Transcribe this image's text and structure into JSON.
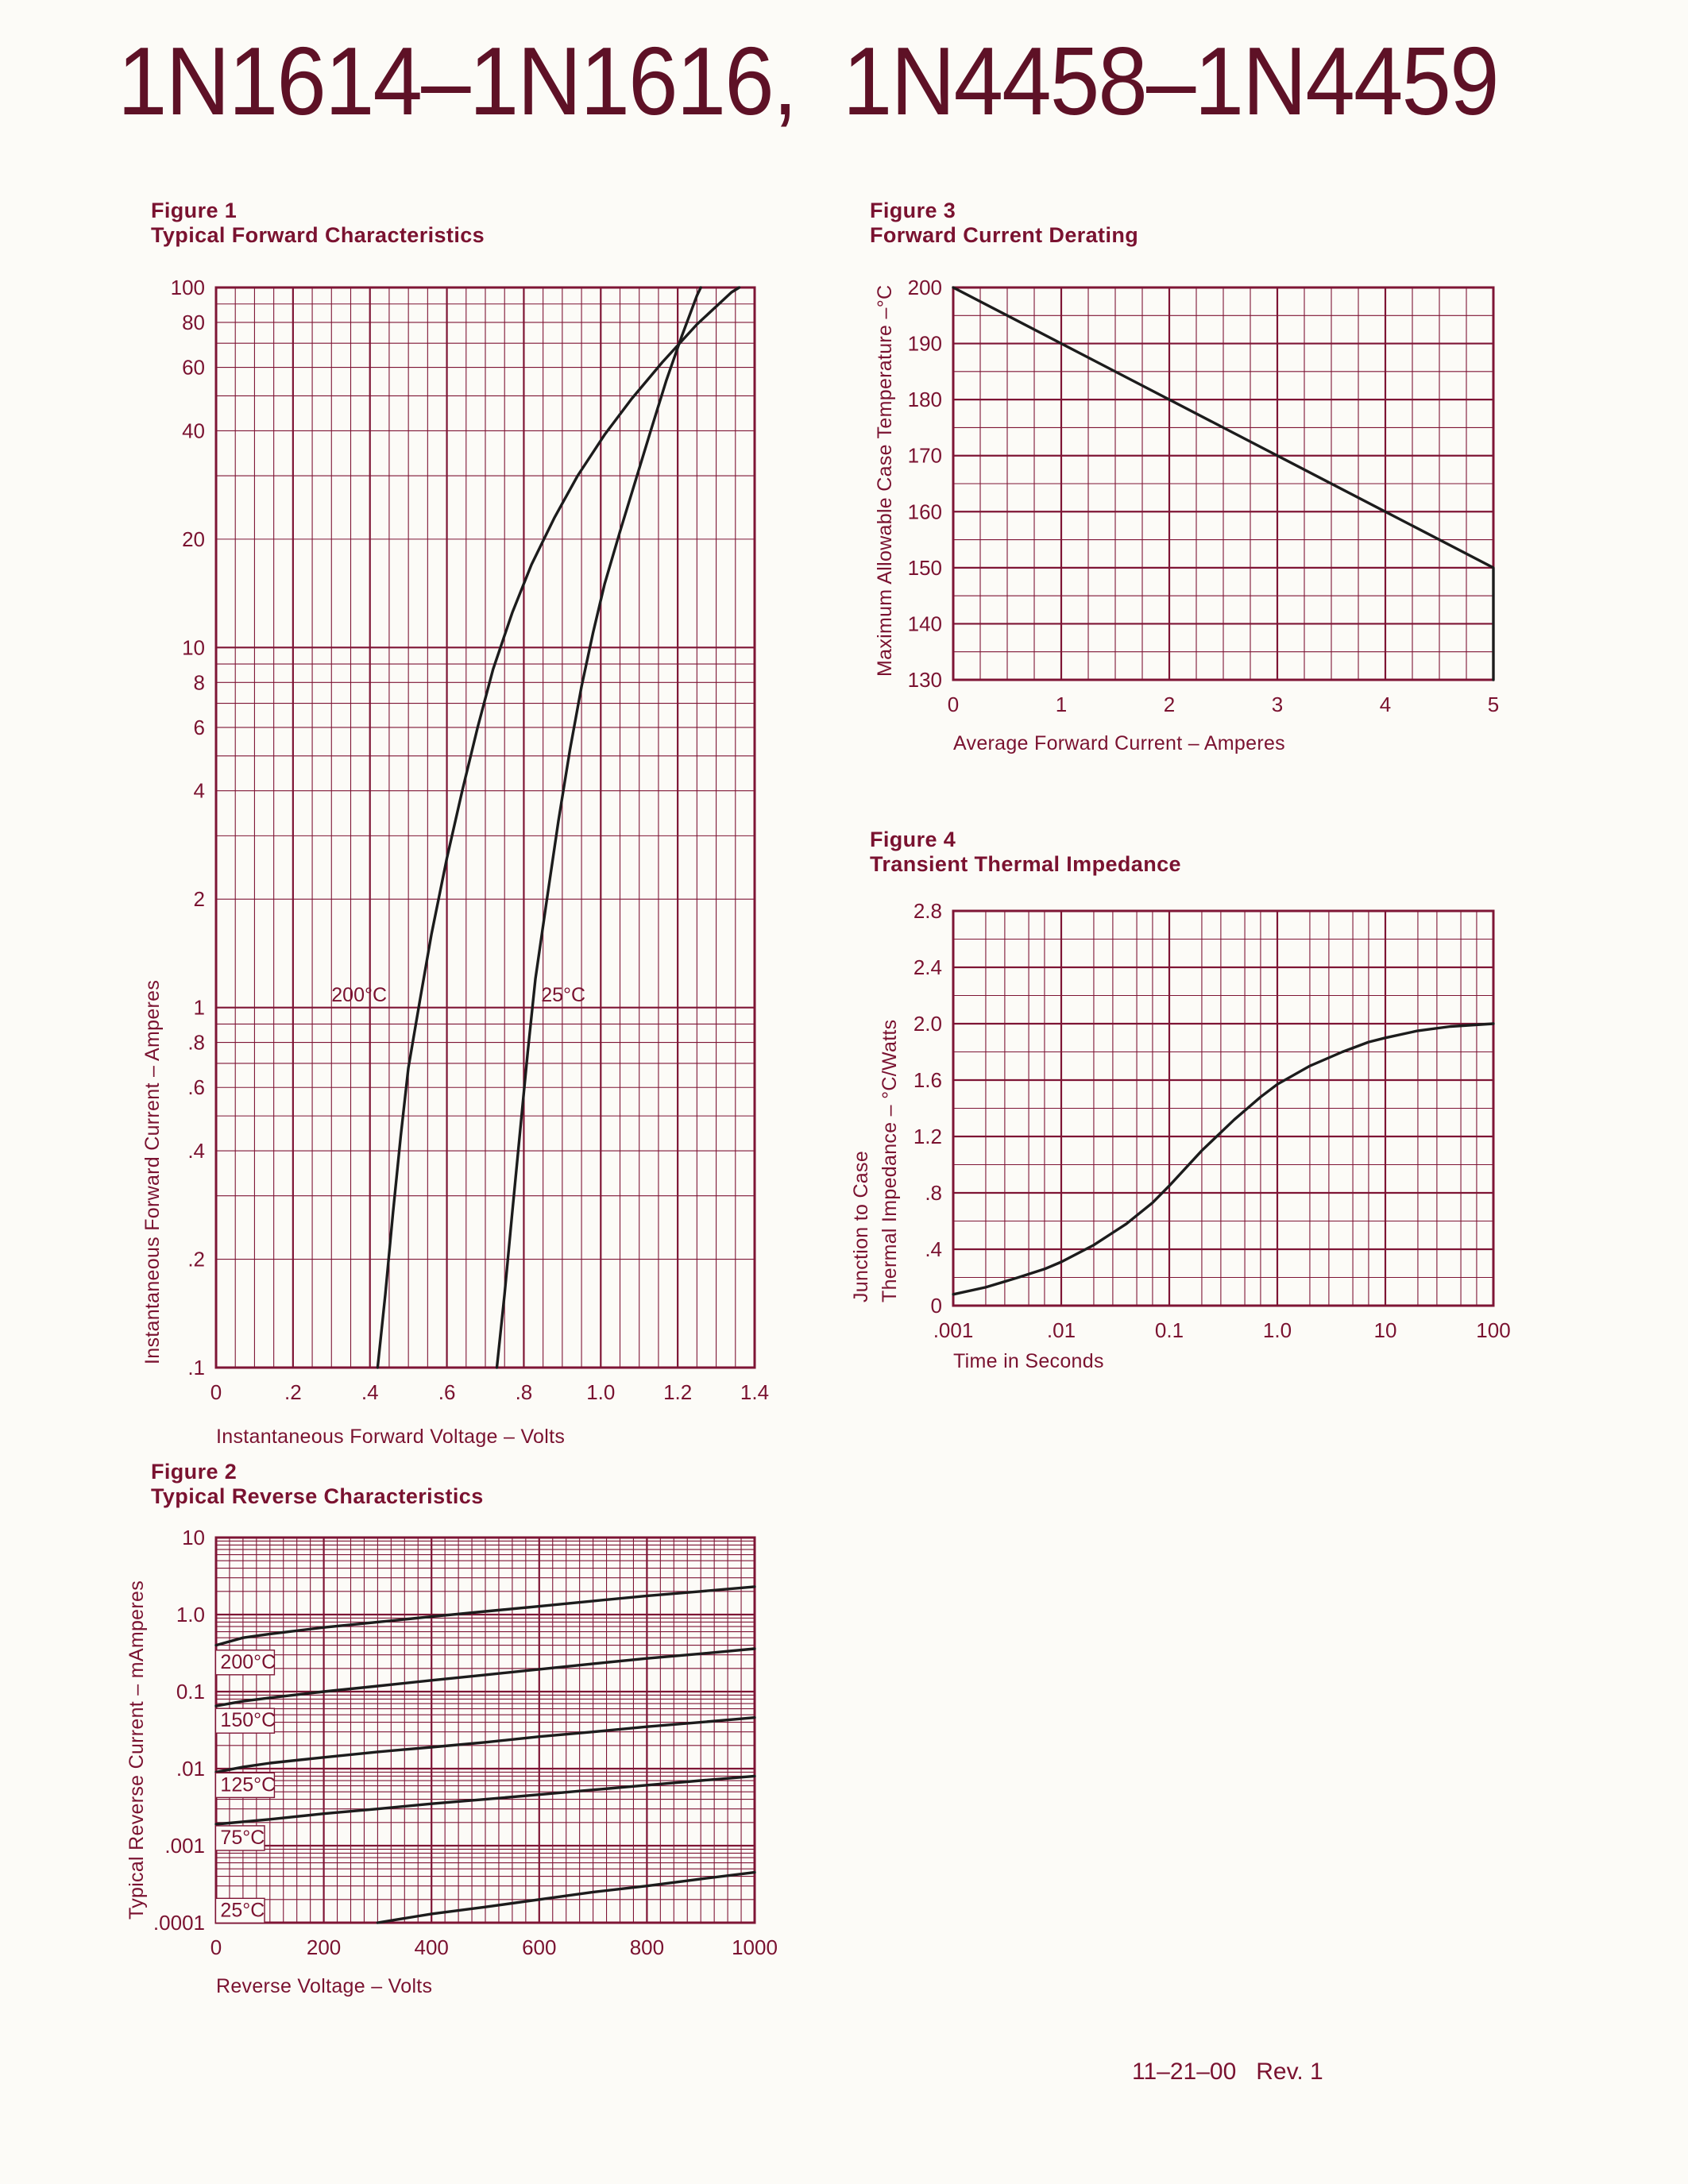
{
  "page": {
    "title": "1N1614–1N1616,  1N4458–1N4459",
    "footer": "11–21–00   Rev. 1"
  },
  "theme": {
    "accent": "#7a1230",
    "grid": "#7e1535",
    "ink": "#1c1c1c",
    "bg": "#fcfbf7"
  },
  "chart_data": [
    {
      "id": "fig1",
      "type": "line",
      "title": "Figure 1",
      "subtitle": "Typical Forward Characteristics",
      "xlabel": "Instantaneous Forward Voltage – Volts",
      "ylabel": "Instantaneous Forward Current – Amperes",
      "x": {
        "scale": "linear",
        "min": 0,
        "max": 1.4,
        "minor": 0.05,
        "ticks": [
          [
            0,
            "0"
          ],
          [
            0.2,
            ".2"
          ],
          [
            0.4,
            ".4"
          ],
          [
            0.6,
            ".6"
          ],
          [
            0.8,
            ".8"
          ],
          [
            1.0,
            "1.0"
          ],
          [
            1.2,
            "1.2"
          ],
          [
            1.4,
            "1.4"
          ]
        ]
      },
      "y": {
        "scale": "log",
        "min": 0.1,
        "max": 100,
        "logMinors": [
          2,
          3,
          4,
          5,
          6,
          7,
          8,
          9
        ],
        "ticks": [
          [
            100,
            "100"
          ],
          [
            80,
            "80"
          ],
          [
            60,
            "60"
          ],
          [
            40,
            "40"
          ],
          [
            20,
            "20"
          ],
          [
            10,
            "10"
          ],
          [
            8,
            "8"
          ],
          [
            6,
            "6"
          ],
          [
            4,
            "4"
          ],
          [
            2,
            "2"
          ],
          [
            1,
            "1"
          ],
          [
            0.8,
            ".8"
          ],
          [
            0.6,
            ".6"
          ],
          [
            0.4,
            ".4"
          ],
          [
            0.2,
            ".2"
          ],
          [
            0.1,
            ".1"
          ]
        ]
      },
      "series": [
        {
          "name": "200°C",
          "points": [
            [
              0.42,
              0.1
            ],
            [
              0.44,
              0.16
            ],
            [
              0.46,
              0.27
            ],
            [
              0.48,
              0.44
            ],
            [
              0.5,
              0.68
            ],
            [
              0.53,
              1.05
            ],
            [
              0.56,
              1.6
            ],
            [
              0.6,
              2.6
            ],
            [
              0.64,
              4
            ],
            [
              0.68,
              6
            ],
            [
              0.72,
              8.7
            ],
            [
              0.77,
              12.5
            ],
            [
              0.82,
              17
            ],
            [
              0.88,
              23
            ],
            [
              0.94,
              30
            ],
            [
              1.01,
              39
            ],
            [
              1.08,
              49
            ],
            [
              1.16,
              62
            ],
            [
              1.25,
              79
            ],
            [
              1.34,
              97
            ],
            [
              1.36,
              100
            ]
          ]
        },
        {
          "name": "25°C",
          "points": [
            [
              0.73,
              0.1
            ],
            [
              0.75,
              0.16
            ],
            [
              0.77,
              0.27
            ],
            [
              0.79,
              0.45
            ],
            [
              0.81,
              0.75
            ],
            [
              0.83,
              1.2
            ],
            [
              0.86,
              2
            ],
            [
              0.89,
              3.3
            ],
            [
              0.92,
              5.2
            ],
            [
              0.95,
              7.8
            ],
            [
              0.98,
              11
            ],
            [
              1.01,
              15
            ],
            [
              1.05,
              21
            ],
            [
              1.09,
              29
            ],
            [
              1.13,
              40
            ],
            [
              1.17,
              55
            ],
            [
              1.21,
              73
            ],
            [
              1.25,
              95
            ],
            [
              1.26,
              100
            ]
          ]
        }
      ],
      "annotations": [
        {
          "x": 0.3,
          "y": 1.04,
          "text": "200°C"
        },
        {
          "x": 0.845,
          "y": 1.04,
          "text": "25°C"
        }
      ]
    },
    {
      "id": "fig3",
      "type": "line",
      "title": "Figure 3",
      "subtitle": "Forward Current Derating",
      "xlabel": "Average Forward Current – Amperes",
      "ylabel": "Maximum Allowable Case Temperature –°C",
      "x": {
        "scale": "linear",
        "min": 0,
        "max": 5,
        "minor": 0.25,
        "ticks": [
          [
            0,
            "0"
          ],
          [
            1,
            "1"
          ],
          [
            2,
            "2"
          ],
          [
            3,
            "3"
          ],
          [
            4,
            "4"
          ],
          [
            5,
            "5"
          ]
        ]
      },
      "y": {
        "scale": "linear",
        "min": 130,
        "max": 200,
        "minor": 5,
        "ticks": [
          [
            200,
            "200"
          ],
          [
            190,
            "190"
          ],
          [
            180,
            "180"
          ],
          [
            170,
            "170"
          ],
          [
            160,
            "160"
          ],
          [
            150,
            "150"
          ],
          [
            140,
            "140"
          ],
          [
            130,
            "130"
          ]
        ]
      },
      "series": [
        {
          "name": "derating-line",
          "points": [
            [
              0,
              200
            ],
            [
              5,
              150
            ],
            [
              5,
              130
            ]
          ]
        }
      ],
      "annotations": []
    },
    {
      "id": "fig4",
      "type": "line",
      "title": "Figure 4",
      "subtitle": "Transient Thermal Impedance",
      "xlabel": "Time in Seconds",
      "ylabel": [
        "Junction to Case",
        "Thermal Impedance – °C/Watts"
      ],
      "x": {
        "scale": "log",
        "min": 0.001,
        "max": 100,
        "logMinors": [
          2,
          3,
          5,
          7
        ],
        "ticks": [
          [
            0.001,
            ".001"
          ],
          [
            0.01,
            ".01"
          ],
          [
            0.1,
            "0.1"
          ],
          [
            1,
            "1.0"
          ],
          [
            10,
            "10"
          ],
          [
            100,
            "100"
          ]
        ]
      },
      "y": {
        "scale": "linear",
        "min": 0,
        "max": 2.8,
        "minor": 0.2,
        "ticks": [
          [
            2.8,
            "2.8"
          ],
          [
            2.4,
            "2.4"
          ],
          [
            2.0,
            "2.0"
          ],
          [
            1.6,
            "1.6"
          ],
          [
            1.2,
            "1.2"
          ],
          [
            0.8,
            ".8"
          ],
          [
            0.4,
            ".4"
          ],
          [
            0,
            "0"
          ]
        ]
      },
      "series": [
        {
          "name": "thermal-impedance",
          "points": [
            [
              0.001,
              0.08
            ],
            [
              0.002,
              0.13
            ],
            [
              0.004,
              0.2
            ],
            [
              0.007,
              0.26
            ],
            [
              0.01,
              0.31
            ],
            [
              0.02,
              0.43
            ],
            [
              0.04,
              0.58
            ],
            [
              0.07,
              0.73
            ],
            [
              0.1,
              0.85
            ],
            [
              0.2,
              1.1
            ],
            [
              0.4,
              1.32
            ],
            [
              0.7,
              1.48
            ],
            [
              1,
              1.57
            ],
            [
              2,
              1.7
            ],
            [
              4,
              1.8
            ],
            [
              7,
              1.87
            ],
            [
              10,
              1.9
            ],
            [
              20,
              1.95
            ],
            [
              40,
              1.98
            ],
            [
              100,
              2.0
            ]
          ]
        }
      ],
      "annotations": []
    },
    {
      "id": "fig2",
      "type": "line",
      "title": "Figure 2",
      "subtitle": "Typical Reverse Characteristics",
      "xlabel": "Reverse Voltage – Volts",
      "ylabel": "Typical Reverse Current – mAmperes",
      "x": {
        "scale": "linear",
        "min": 0,
        "max": 1000,
        "minor": 25,
        "ticks": [
          [
            0,
            "0"
          ],
          [
            200,
            "200"
          ],
          [
            400,
            "400"
          ],
          [
            600,
            "600"
          ],
          [
            800,
            "800"
          ],
          [
            1000,
            "1000"
          ]
        ]
      },
      "y": {
        "scale": "log",
        "min": 0.0001,
        "max": 10,
        "logMinors": [
          2,
          3,
          4,
          5,
          6,
          7,
          8,
          9
        ],
        "ticks": [
          [
            10,
            "10"
          ],
          [
            1,
            "1.0"
          ],
          [
            0.1,
            "0.1"
          ],
          [
            0.01,
            ".01"
          ],
          [
            0.001,
            ".001"
          ],
          [
            0.0001,
            ".0001"
          ]
        ]
      },
      "series": [
        {
          "name": "200°C",
          "points": [
            [
              0,
              0.4
            ],
            [
              50,
              0.5
            ],
            [
              100,
              0.56
            ],
            [
              200,
              0.68
            ],
            [
              300,
              0.8
            ],
            [
              400,
              0.94
            ],
            [
              500,
              1.1
            ],
            [
              600,
              1.28
            ],
            [
              700,
              1.5
            ],
            [
              800,
              1.75
            ],
            [
              900,
              2.0
            ],
            [
              1000,
              2.3
            ]
          ]
        },
        {
          "name": "150°C",
          "points": [
            [
              0,
              0.065
            ],
            [
              50,
              0.075
            ],
            [
              100,
              0.083
            ],
            [
              200,
              0.1
            ],
            [
              300,
              0.118
            ],
            [
              400,
              0.14
            ],
            [
              500,
              0.165
            ],
            [
              600,
              0.195
            ],
            [
              700,
              0.23
            ],
            [
              800,
              0.27
            ],
            [
              900,
              0.31
            ],
            [
              1000,
              0.36
            ]
          ]
        },
        {
          "name": "125°C",
          "points": [
            [
              0,
              0.009
            ],
            [
              50,
              0.0105
            ],
            [
              100,
              0.0118
            ],
            [
              200,
              0.014
            ],
            [
              300,
              0.0165
            ],
            [
              400,
              0.019
            ],
            [
              500,
              0.022
            ],
            [
              600,
              0.026
            ],
            [
              700,
              0.03
            ],
            [
              800,
              0.035
            ],
            [
              900,
              0.04
            ],
            [
              1000,
              0.046
            ]
          ]
        },
        {
          "name": "75°C",
          "points": [
            [
              0,
              0.0019
            ],
            [
              100,
              0.0022
            ],
            [
              200,
              0.0026
            ],
            [
              300,
              0.003
            ],
            [
              400,
              0.0035
            ],
            [
              500,
              0.004
            ],
            [
              600,
              0.0046
            ],
            [
              700,
              0.0053
            ],
            [
              800,
              0.0061
            ],
            [
              900,
              0.007
            ],
            [
              1000,
              0.008
            ]
          ]
        },
        {
          "name": "25°C",
          "points": [
            [
              300,
              0.0001
            ],
            [
              400,
              0.00013
            ],
            [
              500,
              0.00016
            ],
            [
              600,
              0.0002
            ],
            [
              700,
              0.00025
            ],
            [
              800,
              0.0003
            ],
            [
              900,
              0.00037
            ],
            [
              1000,
              0.00045
            ]
          ]
        }
      ],
      "annotations": [
        {
          "x": 8,
          "y": 0.2,
          "text": "200°C",
          "boxed": true
        },
        {
          "x": 8,
          "y": 0.035,
          "text": "150°C",
          "boxed": true
        },
        {
          "x": 8,
          "y": 0.0051,
          "text": "125°C",
          "boxed": true
        },
        {
          "x": 8,
          "y": 0.00105,
          "text": "75°C",
          "boxed": true
        },
        {
          "x": 8,
          "y": 0.00012,
          "text": "25°C",
          "boxed": true
        }
      ]
    }
  ]
}
